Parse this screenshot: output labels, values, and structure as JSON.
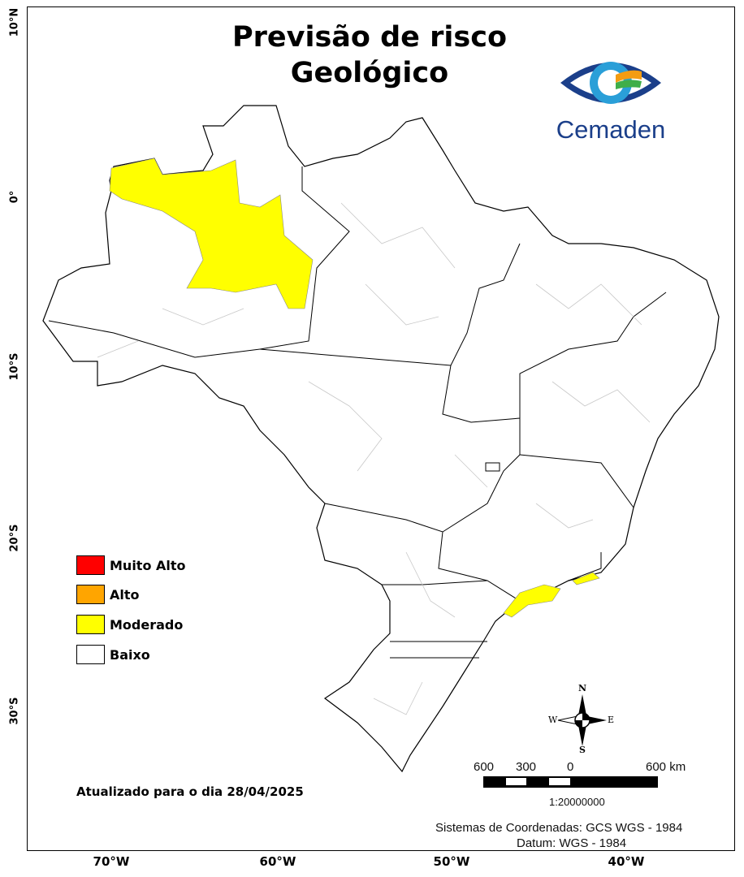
{
  "title_line1": "Previsão de risco",
  "title_line2": "Geológico",
  "logo_text": "Cemaden",
  "lat_ticks": [
    "10°N",
    "0°",
    "10°S",
    "20°S",
    "30°S"
  ],
  "lon_ticks": [
    "70°W",
    "60°W",
    "50°W",
    "40°W"
  ],
  "legend": [
    {
      "label": "Muito Alto",
      "color": "#ff0000"
    },
    {
      "label": "Alto",
      "color": "#ffa500"
    },
    {
      "label": "Moderado",
      "color": "#ffff00"
    },
    {
      "label": "Baixo",
      "color": "#ffffff"
    }
  ],
  "updated": "Atualizado para o dia 28/04/2025",
  "compass": {
    "n": "N",
    "s": "S",
    "e": "E",
    "w": "W"
  },
  "scale": {
    "labels": [
      "600",
      "300",
      "0",
      "600 km"
    ],
    "ratio": "1:20000000"
  },
  "crs": "Sistemas de Coordenadas: GCS WGS - 1984",
  "datum": "Datum: WGS - 1984"
}
